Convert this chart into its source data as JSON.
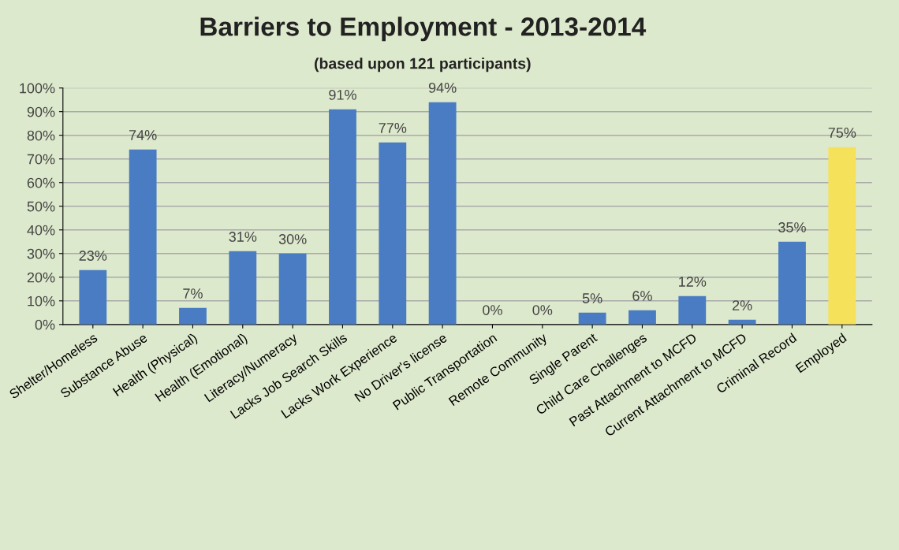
{
  "chart_data": {
    "type": "bar",
    "title": "Barriers to Employment - 2013-2014",
    "subtitle": "(based upon 121 participants)",
    "categories": [
      "Shelter/Homeless",
      "Substance Abuse",
      "Health (Physical)",
      "Health (Emotional)",
      "Literacy/Numeracy",
      "Lacks Job Search Skills",
      "Lacks Work Experience",
      "No Driver's license",
      "Public Transportation",
      "Remote Community",
      "Single Parent",
      "Child Care Challenges",
      "Past Attachment to MCFD",
      "Current Attachment to MCFD",
      "Criminal Record",
      "Employed"
    ],
    "values": [
      23,
      74,
      7,
      31,
      30,
      91,
      77,
      94,
      0,
      0,
      5,
      6,
      12,
      2,
      35,
      75
    ],
    "value_labels": [
      "23%",
      "74%",
      "7%",
      "31%",
      "30%",
      "91%",
      "77%",
      "94%",
      "0%",
      "0%",
      "5%",
      "6%",
      "12%",
      "2%",
      "35%",
      "75%"
    ],
    "colors": [
      "#4a7cc4",
      "#4a7cc4",
      "#4a7cc4",
      "#4a7cc4",
      "#4a7cc4",
      "#4a7cc4",
      "#4a7cc4",
      "#4a7cc4",
      "#4a7cc4",
      "#4a7cc4",
      "#4a7cc4",
      "#4a7cc4",
      "#4a7cc4",
      "#4a7cc4",
      "#4a7cc4",
      "#f5e15a"
    ],
    "ylim": [
      0,
      100
    ],
    "yticks": [
      {
        "value": 0,
        "label": "0%"
      },
      {
        "value": 10,
        "label": "10%"
      },
      {
        "value": 20,
        "label": "20%"
      },
      {
        "value": 30,
        "label": "30%"
      },
      {
        "value": 40,
        "label": "40%"
      },
      {
        "value": 50,
        "label": "50%"
      },
      {
        "value": 60,
        "label": "60%"
      },
      {
        "value": 70,
        "label": "70%"
      },
      {
        "value": 80,
        "label": "80%"
      },
      {
        "value": 90,
        "label": "90%"
      },
      {
        "value": 100,
        "label": "100%"
      }
    ],
    "grid": "y",
    "legend": false
  }
}
